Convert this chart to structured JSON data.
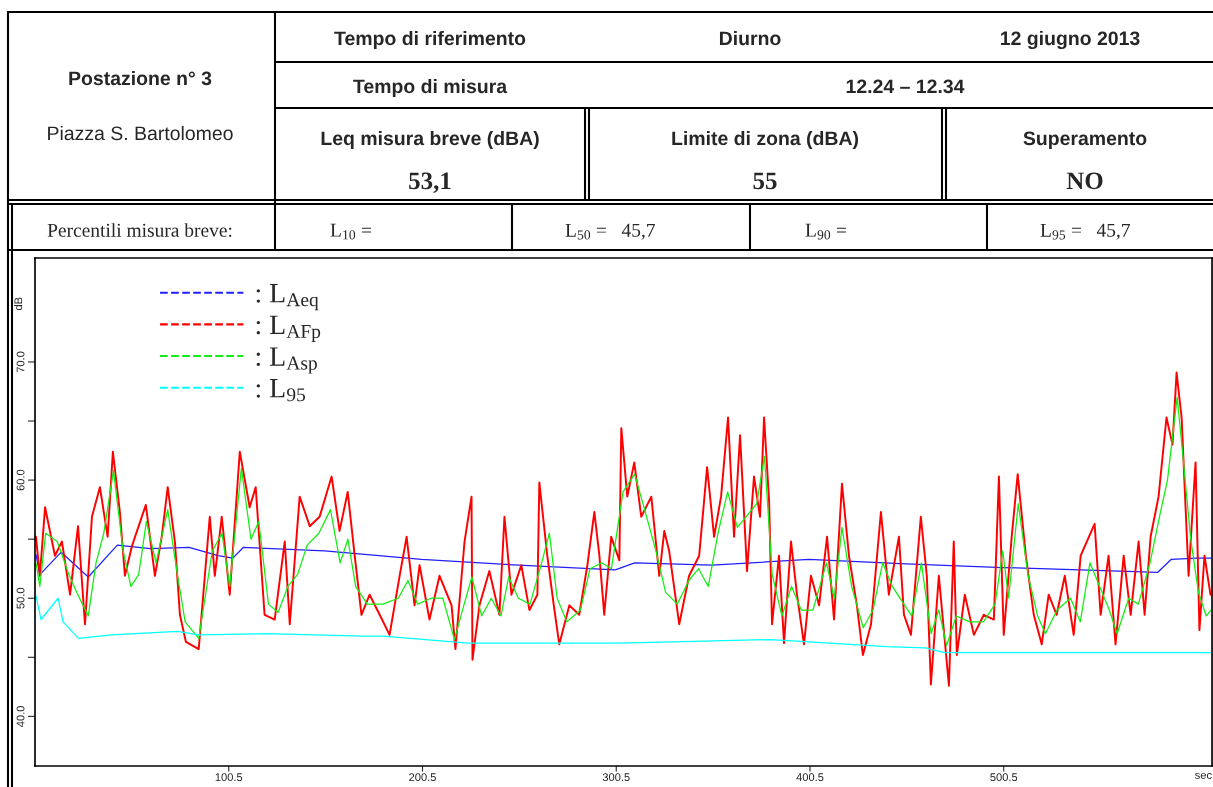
{
  "chart_data": {
    "type": "line",
    "xlabel": "sec",
    "ylabel": "dB",
    "annotations": [
      "Postazione n° 3",
      "Piazza S. Bartolomeo",
      "Tempo di riferimento",
      "Diurno",
      "12 giugno 2013",
      "Tempo di misura",
      "12.24 – 12.34",
      "Leq misura breve (dBA)",
      "53,1",
      "Limite di zona (dBA)",
      "55",
      "Superamento",
      "NO",
      "Percentili misura breve:",
      "L$_{10}$ =",
      "L$_{50}$ =   45,7",
      "L$_{90}$ =",
      "L$_{95}$ =   45,7"
    ],
    "xlim": [
      0.5,
      608
    ],
    "xticks": [
      100.5,
      200.5,
      300.5,
      400.5,
      500.5
    ],
    "ylim": [
      35.8,
      78.8
    ],
    "yticks": [
      {
        "value": 40,
        "label": "40.0"
      },
      {
        "value": 45,
        "label": null
      },
      {
        "value": 50,
        "label": "50.0"
      },
      {
        "value": 55,
        "label": null
      },
      {
        "value": 60,
        "label": "60.0"
      },
      {
        "value": 65,
        "label": null
      },
      {
        "value": 70,
        "label": "70.0"
      }
    ],
    "grid": false,
    "legend": "top left",
    "line_style": "solid",
    "marker": "none",
    "series": [
      {
        "name": ": L$_{Aeq}$",
        "color": "#2020ff",
        "x": [
          1,
          3,
          14,
          28,
          43,
          60,
          80,
          95,
          102.6,
          108,
          150,
          200,
          250,
          300,
          310,
          350,
          400,
          450,
          500,
          540,
          580,
          587,
          600,
          607.5
        ],
        "values": [
          53.7,
          52,
          53.9,
          51.8,
          54.5,
          54.2,
          54.3,
          53.6,
          53.4,
          54.3,
          54,
          53.3,
          52.8,
          52.4,
          53,
          52.8,
          53.3,
          52.9,
          52.6,
          52.4,
          52.2,
          53.3,
          53.4,
          53.4
        ]
      },
      {
        "name": ": L$_{AFp}$",
        "color": "#ff0000",
        "x": [
          1,
          3,
          5.7,
          10.8,
          14.4,
          18.6,
          22.7,
          26.3,
          29.9,
          34,
          38,
          40.7,
          44.3,
          46.9,
          50.5,
          57.7,
          62.4,
          65.9,
          69,
          72.7,
          75.3,
          78.4,
          85,
          90.7,
          93.3,
          96.9,
          101,
          106.2,
          111.3,
          114.4,
          119,
          124.2,
          129.4,
          132,
          137.1,
          142.3,
          147.4,
          153.6,
          157.7,
          161.9,
          165.5,
          169,
          173.2,
          178.4,
          183.5,
          188.7,
          192.3,
          196.4,
          199,
          204.1,
          209.3,
          215.5,
          217.5,
          222.2,
          225.8,
          226.3,
          229.9,
          235,
          240.2,
          242.8,
          246.4,
          251.5,
          255.7,
          259.8,
          260.8,
          264.9,
          268.6,
          271.1,
          276.3,
          281.4,
          285.6,
          289.2,
          291.8,
          294.3,
          297.9,
          302.1,
          303.1,
          306.2,
          309.8,
          313.4,
          318.6,
          322.7,
          325.3,
          327.8,
          333,
          338.1,
          343.3,
          347.4,
          351,
          354.6,
          358.2,
          361.3,
          364.4,
          368,
          371.6,
          374.7,
          376.8,
          379.4,
          380.9,
          384.5,
          387.1,
          390.7,
          393.8,
          397.4,
          401,
          405.2,
          409.3,
          412.9,
          417,
          420.6,
          424.7,
          427.8,
          432,
          437.1,
          441.2,
          446.4,
          449,
          452.6,
          457.7,
          460.8,
          462.9,
          467,
          472.2,
          474.7,
          476.3,
          480.4,
          485.1,
          490.2,
          495.4,
          498,
          500.5,
          504.6,
          507.7,
          511.9,
          516,
          520.1,
          523.7,
          527.8,
          532,
          536.6,
          540.2,
          547.4,
          550.5,
          554.6,
          558.2,
          562.4,
          566,
          570.1,
          573.2,
          576.3,
          580.4,
          584.5,
          587.6,
          589.7,
          592.3,
          595.9,
          599.5,
          601.5,
          604.1,
          607.2
        ],
        "values": [
          55.2,
          51.9,
          57.7,
          53.6,
          54.8,
          50.3,
          56.1,
          47.8,
          56.9,
          59.4,
          55.2,
          62.4,
          57.3,
          51.9,
          54.4,
          57.9,
          51.9,
          55.2,
          59.4,
          54.8,
          48.6,
          46.3,
          45.7,
          56.9,
          51.9,
          56.9,
          50.3,
          62.4,
          57.7,
          59.4,
          48.6,
          48.2,
          54.8,
          47.8,
          58.6,
          56.1,
          56.9,
          60.3,
          55.7,
          59,
          53.6,
          48.6,
          50.3,
          48.6,
          46.9,
          51.9,
          55.2,
          49.4,
          52.8,
          48.2,
          51.9,
          49.4,
          45.7,
          54.8,
          58.6,
          44.8,
          49.4,
          52.3,
          48.6,
          56.9,
          50.3,
          52.8,
          49,
          50.3,
          59.8,
          53.6,
          49,
          46.1,
          49.4,
          48.6,
          52.8,
          57.3,
          53.6,
          48.6,
          55.2,
          53.2,
          64.4,
          58.6,
          61.5,
          56.9,
          58.6,
          51.9,
          55.7,
          54,
          47.8,
          51.9,
          53.6,
          61.1,
          55.2,
          58.6,
          65.3,
          55.2,
          63.8,
          52.3,
          60.3,
          56.9,
          65.3,
          58.2,
          47.8,
          53.6,
          46.2,
          54.8,
          50.3,
          46.1,
          51.9,
          49.4,
          55.2,
          48.2,
          59.7,
          53.6,
          49.4,
          45.2,
          47.8,
          57.3,
          50.3,
          55.2,
          48.6,
          46.9,
          56.9,
          51.9,
          42.7,
          51.9,
          42.6,
          54.8,
          45.2,
          50.3,
          46.9,
          48.6,
          48.2,
          60.3,
          46.9,
          55.2,
          60.5,
          53.6,
          48.6,
          46.1,
          50.3,
          48.6,
          51.9,
          46.9,
          53.6,
          56.3,
          48.6,
          53.6,
          46.1,
          53.6,
          48.6,
          54.8,
          48.6,
          55.2,
          58.6,
          65.3,
          63,
          69.1,
          65.3,
          51.9,
          61.5,
          47.3,
          53.6,
          50.3
        ]
      },
      {
        "name": ": L$_{Asp}$",
        "color": "#11ee11",
        "x": [
          1,
          3,
          6,
          12,
          18,
          22,
          28,
          32,
          36,
          41,
          46,
          50,
          54,
          58,
          63,
          69,
          74,
          78,
          85,
          92,
          97,
          101,
          107,
          112,
          116,
          121,
          126,
          131,
          136,
          141,
          147,
          153,
          158,
          162,
          166,
          172,
          180,
          188,
          193,
          198,
          205,
          211,
          217,
          222,
          226,
          231,
          236,
          241,
          245,
          250,
          256,
          262,
          266,
          270,
          275,
          282,
          287,
          293,
          298,
          304,
          310,
          316,
          321,
          326,
          332,
          338,
          343,
          348,
          353,
          358,
          363,
          368,
          373,
          377,
          381,
          386,
          391,
          396,
          402,
          409,
          413,
          417,
          422,
          428,
          433,
          438,
          443,
          449,
          453,
          458,
          463,
          467,
          471,
          476,
          483,
          490,
          496,
          500,
          503,
          508,
          513,
          518,
          522,
          528,
          535,
          540,
          545,
          550,
          555,
          559,
          565,
          570,
          576,
          581,
          585,
          590,
          593,
          597,
          601,
          605,
          607.5
        ],
        "values": [
          53,
          51,
          55.5,
          54.8,
          52,
          50.5,
          48.5,
          53,
          55.5,
          60.8,
          54,
          51,
          52,
          56.5,
          53,
          57.5,
          52,
          48,
          46.6,
          54,
          55.5,
          51,
          61,
          55,
          56.5,
          49.5,
          48.8,
          51,
          52,
          54.5,
          55.5,
          57.5,
          53,
          55,
          51,
          49.5,
          49.5,
          50,
          51.5,
          49.5,
          50,
          50,
          46.5,
          49.5,
          51.8,
          48.5,
          50,
          48.5,
          51.8,
          50,
          49.5,
          53,
          55.5,
          50,
          48,
          49,
          52.5,
          53,
          52.5,
          59,
          60.5,
          57,
          54,
          50.5,
          49.5,
          51.5,
          52.5,
          51,
          55.5,
          59,
          56,
          57,
          58,
          62,
          52,
          48.5,
          51,
          49,
          49,
          53,
          50,
          56,
          51,
          47.5,
          49,
          53,
          51,
          49.5,
          48.5,
          53,
          47,
          49,
          46,
          48.5,
          48,
          48,
          49.5,
          54,
          50,
          58,
          52,
          48.5,
          47,
          49,
          50,
          48,
          53,
          51,
          49,
          47,
          50,
          49.5,
          53,
          57,
          60,
          67,
          62,
          55,
          50.5,
          48.5,
          49
        ]
      },
      {
        "name": ": L$_{95}$",
        "color": "#00ffff",
        "x": [
          1,
          3.6,
          12.4,
          15,
          23,
          40,
          74,
          85,
          120,
          169.6,
          180,
          224,
          300,
          330,
          380,
          400,
          440,
          460,
          470,
          607.5
        ],
        "values": [
          50.2,
          48.2,
          50,
          48,
          46.6,
          46.9,
          47.2,
          46.9,
          47,
          46.8,
          46.8,
          46.2,
          46.2,
          46.3,
          46.5,
          46.3,
          45.9,
          45.8,
          45.4,
          45.4
        ]
      }
    ]
  }
}
